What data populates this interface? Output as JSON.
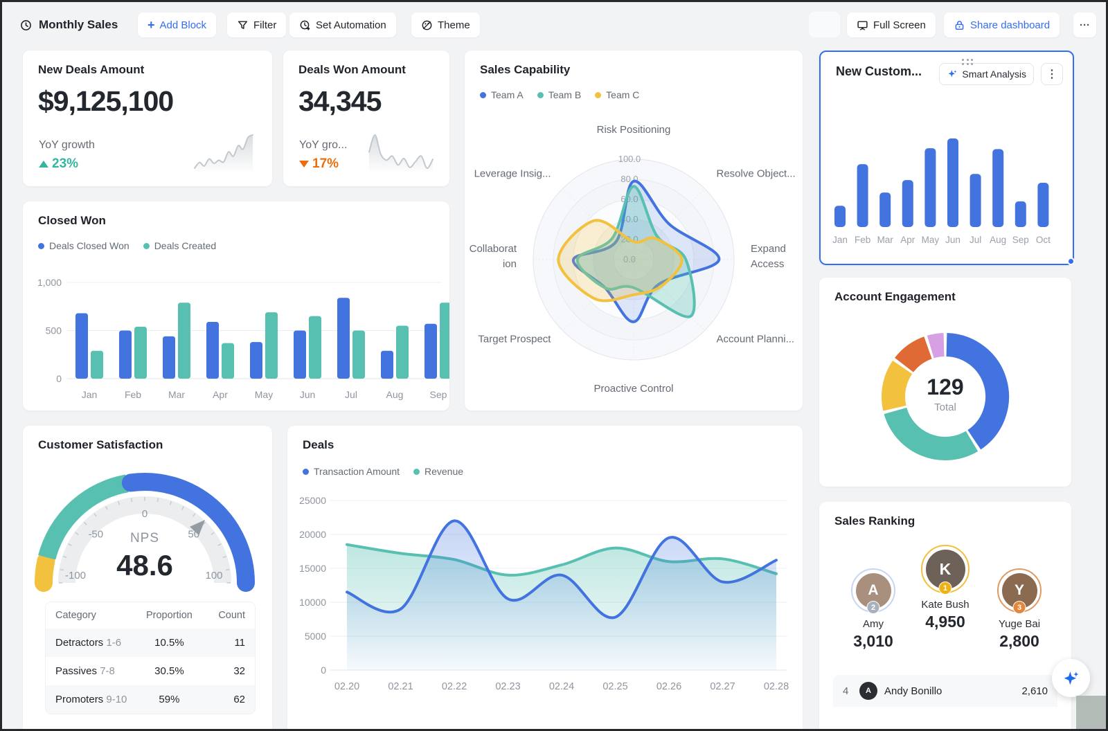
{
  "toolbar": {
    "title": "Monthly Sales",
    "add_block": "Add Block",
    "filter": "Filter",
    "set_automation": "Set Automation",
    "theme": "Theme",
    "full_screen": "Full Screen",
    "share": "Share dashboard",
    "more": "···"
  },
  "colors": {
    "blue": "#4273DF",
    "teal": "#57C0B1",
    "yellow": "#F2C13D",
    "orange": "#E06A35",
    "purple": "#D8A0E4",
    "up_green": "#35B59E",
    "down_orange": "#ED6D0C",
    "accent_blue": "#336DF4",
    "axis_text": "#8F959E",
    "grid": "#E7E9EC"
  },
  "kpi_new_deals": {
    "title": "New Deals Amount",
    "value": "$9,125,100",
    "subtitle": "YoY growth",
    "delta": "23%",
    "direction": "up"
  },
  "kpi_deals_won": {
    "title": "Deals Won Amount",
    "value": "34,345",
    "subtitle": "YoY gro...",
    "delta": "17%",
    "direction": "down"
  },
  "sales_capability": {
    "title": "Sales Capability"
  },
  "new_customers": {
    "title": "New Custom...",
    "smart_analysis": "Smart Analysis",
    "kebab": "⋮"
  },
  "closed_won": {
    "title": "Closed Won"
  },
  "account_engagement": {
    "title": "Account Engagement",
    "total_value": "129",
    "total_label": "Total"
  },
  "customer_satisfaction": {
    "title": "Customer Satisfaction",
    "metric_label": "NPS",
    "metric_value": "48.6"
  },
  "deals": {
    "title": "Deals"
  },
  "sales_ranking": {
    "title": "Sales Ranking",
    "podium": [
      {
        "rank": "2",
        "name": "Amy",
        "value": "3,010",
        "ring": "#C9D5F0",
        "badge": "#A9B1BD",
        "avatar_bg": "#A98F7E"
      },
      {
        "rank": "1",
        "name": "Kate Bush",
        "value": "4,950",
        "ring": "#F2C03C",
        "badge": "#F0B114",
        "avatar_bg": "#6E6258"
      },
      {
        "rank": "3",
        "name": "Yuge Bai",
        "value": "2,800",
        "ring": "#E09A62",
        "badge": "#E2873B",
        "avatar_bg": "#8A6B50"
      }
    ],
    "list": [
      {
        "rank": "4",
        "name": "Andy Bonillo",
        "value": "2,610"
      }
    ]
  },
  "chart_data": [
    {
      "id": "new_deals_trend",
      "type": "line",
      "values": [
        15,
        28,
        20,
        36,
        26,
        33,
        29,
        52,
        42,
        66,
        58,
        84,
        90
      ],
      "color": "#C3C8CF"
    },
    {
      "id": "deals_won_trend",
      "type": "line",
      "values": [
        50,
        92,
        45,
        30,
        40,
        18,
        34,
        12,
        26,
        40,
        10,
        32
      ],
      "color": "#C3C8CF"
    },
    {
      "id": "sales_capability",
      "type": "radar",
      "max": 100,
      "tick_labels": [
        "100.0",
        "80.0",
        "60.0",
        "40.0",
        "20.0",
        "0.0"
      ],
      "axes": [
        {
          "label": [
            "Risk Positioning"
          ]
        },
        {
          "label": [
            "Resolve Object..."
          ]
        },
        {
          "label": [
            "Expand",
            "Access"
          ]
        },
        {
          "label": [
            "Account Planni..."
          ]
        },
        {
          "label": [
            "Proactive Control"
          ]
        },
        {
          "label": [
            "Target Prospect"
          ]
        },
        {
          "label": [
            "Collaborat",
            "ion"
          ]
        },
        {
          "label": [
            "Leverage Insig..."
          ]
        }
      ],
      "series": [
        {
          "name": "Team A",
          "color": "#4273DF",
          "values": [
            78,
            50,
            85,
            35,
            62,
            40,
            60,
            25
          ]
        },
        {
          "name": "Team B",
          "color": "#57C0B1",
          "values": [
            73,
            33,
            52,
            80,
            28,
            40,
            56,
            30
          ]
        },
        {
          "name": "Team C",
          "color": "#F2C13D",
          "values": [
            18,
            30,
            48,
            38,
            35,
            55,
            75,
            55
          ]
        }
      ],
      "legend_position": "top",
      "grid": "circular"
    },
    {
      "id": "new_customers",
      "type": "bar",
      "color": "#4273DF",
      "categories": [
        "Jan",
        "Feb",
        "Mar",
        "Apr",
        "May",
        "Jun",
        "Jul",
        "Aug",
        "Sep",
        "Oct"
      ],
      "values": [
        24,
        71,
        39,
        53,
        89,
        100,
        60,
        88,
        29,
        50
      ]
    },
    {
      "id": "closed_won",
      "type": "bar",
      "categories": [
        "Jan",
        "Feb",
        "Mar",
        "Apr",
        "May",
        "Jun",
        "Jul",
        "Aug",
        "Sep"
      ],
      "series": [
        {
          "name": "Deals Closed Won",
          "color": "#4273DF",
          "values": [
            680,
            500,
            440,
            590,
            380,
            500,
            840,
            290,
            570
          ]
        },
        {
          "name": "Deals Created",
          "color": "#57C0B1",
          "values": [
            290,
            540,
            790,
            370,
            690,
            650,
            500,
            550,
            790
          ]
        }
      ],
      "ylim": [
        0,
        1000
      ],
      "yticks": [
        {
          "v": 1000,
          "label": "1,000"
        },
        {
          "v": 500,
          "label": "500"
        },
        {
          "v": 0,
          "label": "0"
        }
      ]
    },
    {
      "id": "account_engagement",
      "type": "pie",
      "total": 129,
      "slices": [
        {
          "color": "#4273DF",
          "percent": 41
        },
        {
          "color": "#57C0B1",
          "percent": 30
        },
        {
          "color": "#F2C13D",
          "percent": 14
        },
        {
          "color": "#E06A35",
          "percent": 10
        },
        {
          "color": "#D8A0E4",
          "percent": 5
        }
      ]
    },
    {
      "id": "customer_satisfaction_gauge",
      "type": "gauge",
      "min": -100,
      "max": 100,
      "value": 48.6,
      "tick_labels": [
        {
          "v": -100,
          "label": "-100"
        },
        {
          "v": -50,
          "label": "-50"
        },
        {
          "v": 0,
          "label": "0"
        },
        {
          "v": 50,
          "label": "50"
        },
        {
          "v": 100,
          "label": "100"
        }
      ],
      "segments": [
        {
          "from": -100,
          "to": -85,
          "color": "#F2C13D"
        },
        {
          "from": -85,
          "to": -10,
          "color": "#57C0B1"
        },
        {
          "from": -10,
          "to": 100,
          "color": "#4273DF"
        }
      ]
    },
    {
      "id": "nps_table",
      "type": "table",
      "columns": [
        "Category",
        "Proportion",
        "Count"
      ],
      "rows": [
        {
          "category": "Detractors",
          "range": "1-6",
          "proportion": "10.5%",
          "count": "11"
        },
        {
          "category": "Passives",
          "range": "7-8",
          "proportion": "30.5%",
          "count": "32"
        },
        {
          "category": "Promoters",
          "range": "9-10",
          "proportion": "59%",
          "count": "62"
        }
      ]
    },
    {
      "id": "deals",
      "type": "line",
      "x": [
        "02.20",
        "02.21",
        "02.22",
        "02.23",
        "02.24",
        "02.25",
        "02.26",
        "02.27",
        "02.28"
      ],
      "ylim": [
        0,
        25000
      ],
      "yticks": [
        25000,
        20000,
        15000,
        10000,
        5000,
        0
      ],
      "series": [
        {
          "name": "Transaction Amount",
          "color": "#4273DF",
          "values": [
            11500,
            9000,
            22000,
            10500,
            14000,
            7800,
            19500,
            13000,
            16200
          ]
        },
        {
          "name": "Revenue",
          "color": "#57C0B1",
          "values": [
            18500,
            17200,
            16300,
            14000,
            15500,
            18000,
            16000,
            16400,
            14200
          ]
        }
      ]
    }
  ]
}
